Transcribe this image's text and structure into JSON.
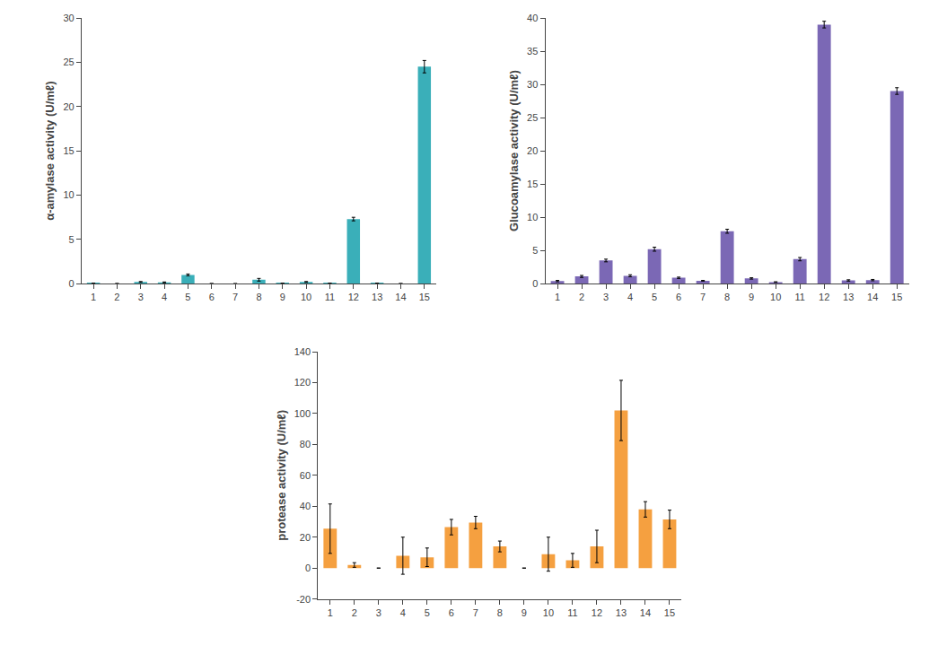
{
  "chart_data": [
    {
      "type": "bar",
      "categories": [
        "1",
        "2",
        "3",
        "4",
        "5",
        "6",
        "7",
        "8",
        "9",
        "10",
        "11",
        "12",
        "13",
        "14",
        "15"
      ],
      "values": [
        0.05,
        0.02,
        0.2,
        0.15,
        1.0,
        0.02,
        0.01,
        0.45,
        0.05,
        0.2,
        0.05,
        7.3,
        0.05,
        0.02,
        24.5
      ],
      "errors": [
        0.02,
        0.01,
        0.05,
        0.05,
        0.1,
        0.01,
        0.01,
        0.15,
        0.02,
        0.05,
        0.02,
        0.2,
        0.02,
        0.01,
        0.7
      ],
      "ylabel": "α-amylase activity (U/mℓ)",
      "ylim": [
        0,
        30
      ],
      "yticks": [
        0,
        5,
        10,
        15,
        20,
        25,
        30
      ],
      "color": "#3AAFB9",
      "grid": false
    },
    {
      "type": "bar",
      "categories": [
        "1",
        "2",
        "3",
        "4",
        "5",
        "6",
        "7",
        "8",
        "9",
        "10",
        "11",
        "12",
        "13",
        "14",
        "15"
      ],
      "values": [
        0.4,
        1.1,
        3.5,
        1.2,
        5.2,
        0.9,
        0.45,
        7.9,
        0.8,
        0.25,
        3.7,
        39.0,
        0.5,
        0.55,
        29.0
      ],
      "errors": [
        0.1,
        0.15,
        0.2,
        0.15,
        0.3,
        0.1,
        0.05,
        0.3,
        0.1,
        0.05,
        0.25,
        0.5,
        0.1,
        0.1,
        0.5
      ],
      "ylabel": "Glucoamylase activity (U/mℓ)",
      "ylim": [
        0,
        40
      ],
      "yticks": [
        0,
        5,
        10,
        15,
        20,
        25,
        30,
        35,
        40
      ],
      "color": "#7B68B5",
      "grid": false
    },
    {
      "type": "bar",
      "categories": [
        "1",
        "2",
        "3",
        "4",
        "5",
        "6",
        "7",
        "8",
        "9",
        "10",
        "11",
        "12",
        "13",
        "14",
        "15"
      ],
      "values": [
        25.5,
        2.0,
        0.0,
        8.0,
        7.0,
        26.5,
        29.5,
        14.0,
        0.0,
        9.0,
        5.0,
        14.0,
        102.0,
        38.0,
        31.5
      ],
      "errors": [
        16.0,
        1.5,
        0.0,
        12.0,
        6.0,
        5.0,
        4.0,
        3.5,
        0.0,
        11.0,
        4.5,
        10.5,
        19.5,
        5.0,
        6.0
      ],
      "ylabel": "protease activity (U/mℓ)",
      "ylim": [
        -20,
        140
      ],
      "yticks": [
        -20,
        0,
        20,
        40,
        60,
        80,
        100,
        120,
        140
      ],
      "color": "#F5A040",
      "grid": false
    }
  ]
}
